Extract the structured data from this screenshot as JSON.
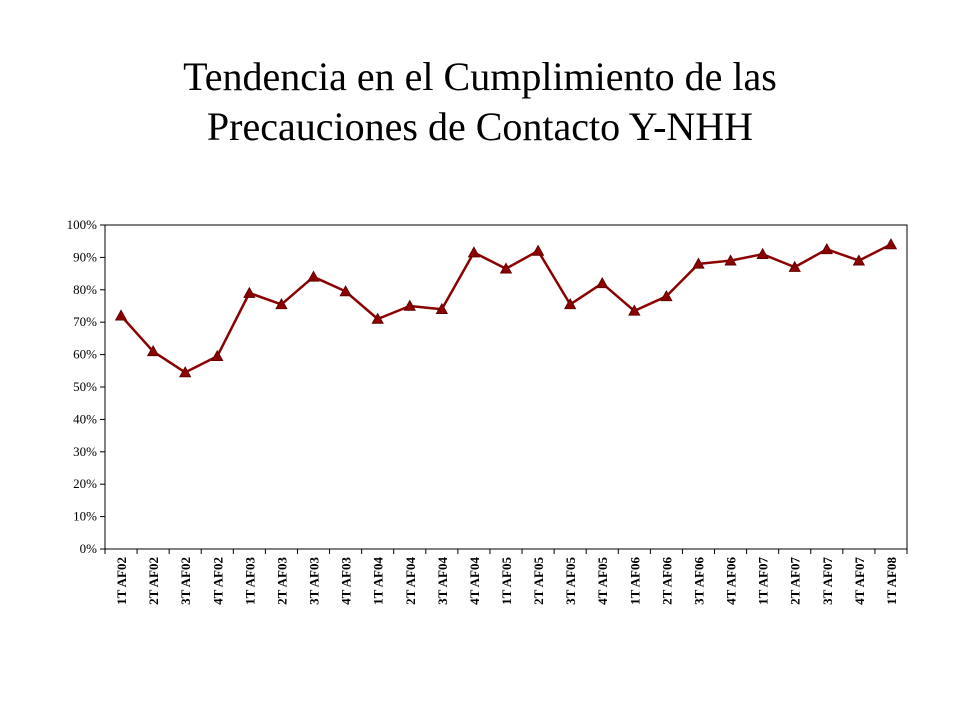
{
  "title": {
    "line1": "Tendencia en el Cumplimiento de las",
    "line2": "Precauciones de Contacto Y-NHH"
  },
  "chart_data": {
    "type": "line",
    "title": "Tendencia en el Cumplimiento de las Precauciones de Contacto Y-NHH",
    "xlabel": "",
    "ylabel": "",
    "ylim": [
      0,
      100
    ],
    "yticks": [
      "0%",
      "10%",
      "20%",
      "30%",
      "40%",
      "50%",
      "60%",
      "70%",
      "80%",
      "90%",
      "100%"
    ],
    "grid": false,
    "legend": "none",
    "marker": "triangle",
    "line_color": "#8b0000",
    "marker_color": "#8b0000",
    "categories": [
      "1T AF02",
      "2T AF02",
      "3T AF02",
      "4T AF02",
      "1T AF03",
      "2T AF03",
      "3T AF03",
      "4T AF03",
      "1T AF04",
      "2T AF04",
      "3T AF04",
      "4T AF04",
      "1T AF05",
      "2T AF05",
      "3T AF05",
      "4T AF05",
      "1T AF06",
      "2T AF06",
      "3T AF06",
      "4T AF06",
      "1T AF07",
      "2T AF07",
      "3T AF07",
      "4T AF07",
      "1T AF08"
    ],
    "series": [
      {
        "name": "Cumplimiento",
        "values": [
          72,
          61,
          54.5,
          59.5,
          79,
          75.5,
          84,
          79.5,
          71,
          75,
          74,
          91.5,
          86.5,
          92,
          75.5,
          82,
          73.5,
          78,
          88,
          89,
          91,
          87,
          92.5,
          89,
          94
        ]
      }
    ]
  }
}
